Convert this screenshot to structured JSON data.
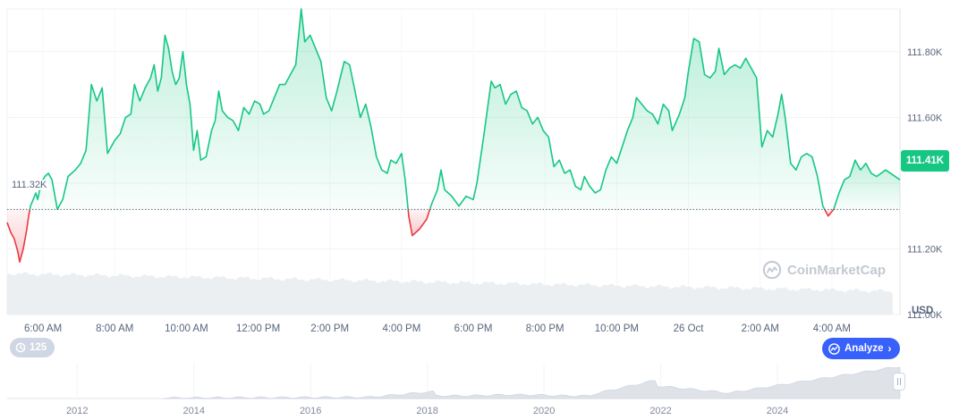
{
  "chart_data": {
    "type": "line",
    "currency_label": "USD",
    "reference_price": 111320,
    "reference_label": "111.32K",
    "current_price_label": "111.41K",
    "y_ticks": [
      {
        "value": 111000,
        "label": "111.00K"
      },
      {
        "value": 111200,
        "label": "111.20K"
      },
      {
        "value": 111400,
        "label": ""
      },
      {
        "value": 111600,
        "label": "111.60K"
      },
      {
        "value": 111800,
        "label": "111.80K"
      }
    ],
    "ylim": [
      111000,
      111930
    ],
    "x_range_hours": [
      5.0,
      29.9
    ],
    "x_ticks": [
      {
        "hour": 6,
        "label": "6:00 AM"
      },
      {
        "hour": 8,
        "label": "8:00 AM"
      },
      {
        "hour": 10,
        "label": "10:00 AM"
      },
      {
        "hour": 12,
        "label": "12:00 PM"
      },
      {
        "hour": 14,
        "label": "2:00 PM"
      },
      {
        "hour": 16,
        "label": "4:00 PM"
      },
      {
        "hour": 18,
        "label": "6:00 PM"
      },
      {
        "hour": 20,
        "label": "8:00 PM"
      },
      {
        "hour": 22,
        "label": "10:00 PM"
      },
      {
        "hour": 24,
        "label": "26 Oct"
      },
      {
        "hour": 26,
        "label": "2:00 AM"
      },
      {
        "hour": 28,
        "label": "4:00 AM"
      }
    ],
    "series": [
      {
        "points": [
          [
            5.0,
            111280
          ],
          [
            5.1,
            111250
          ],
          [
            5.2,
            111230
          ],
          [
            5.3,
            111190
          ],
          [
            5.35,
            111160
          ],
          [
            5.45,
            111200
          ],
          [
            5.55,
            111260
          ],
          [
            5.6,
            111300
          ],
          [
            5.65,
            111330
          ],
          [
            5.8,
            111370
          ],
          [
            5.85,
            111350
          ],
          [
            5.95,
            111400
          ],
          [
            6.05,
            111420
          ],
          [
            6.15,
            111430
          ],
          [
            6.25,
            111410
          ],
          [
            6.4,
            111320
          ],
          [
            6.55,
            111350
          ],
          [
            6.7,
            111420
          ],
          [
            6.9,
            111440
          ],
          [
            7.05,
            111460
          ],
          [
            7.2,
            111500
          ],
          [
            7.35,
            111700
          ],
          [
            7.5,
            111650
          ],
          [
            7.65,
            111690
          ],
          [
            7.8,
            111490
          ],
          [
            8.0,
            111530
          ],
          [
            8.15,
            111550
          ],
          [
            8.3,
            111600
          ],
          [
            8.45,
            111610
          ],
          [
            8.55,
            111700
          ],
          [
            8.7,
            111650
          ],
          [
            8.85,
            111690
          ],
          [
            9.0,
            111720
          ],
          [
            9.1,
            111760
          ],
          [
            9.2,
            111680
          ],
          [
            9.3,
            111720
          ],
          [
            9.4,
            111850
          ],
          [
            9.5,
            111810
          ],
          [
            9.6,
            111740
          ],
          [
            9.7,
            111700
          ],
          [
            9.8,
            111720
          ],
          [
            9.9,
            111800
          ],
          [
            10.0,
            111700
          ],
          [
            10.1,
            111640
          ],
          [
            10.2,
            111500
          ],
          [
            10.3,
            111560
          ],
          [
            10.4,
            111470
          ],
          [
            10.55,
            111480
          ],
          [
            10.7,
            111560
          ],
          [
            10.8,
            111590
          ],
          [
            10.9,
            111680
          ],
          [
            11.0,
            111620
          ],
          [
            11.15,
            111600
          ],
          [
            11.3,
            111590
          ],
          [
            11.45,
            111560
          ],
          [
            11.6,
            111630
          ],
          [
            11.75,
            111610
          ],
          [
            11.9,
            111650
          ],
          [
            12.05,
            111640
          ],
          [
            12.15,
            111610
          ],
          [
            12.3,
            111620
          ],
          [
            12.45,
            111660
          ],
          [
            12.6,
            111700
          ],
          [
            12.75,
            111700
          ],
          [
            12.9,
            111730
          ],
          [
            13.05,
            111760
          ],
          [
            13.2,
            111930
          ],
          [
            13.3,
            111830
          ],
          [
            13.45,
            111850
          ],
          [
            13.6,
            111810
          ],
          [
            13.75,
            111770
          ],
          [
            13.9,
            111660
          ],
          [
            14.05,
            111620
          ],
          [
            14.2,
            111680
          ],
          [
            14.4,
            111770
          ],
          [
            14.55,
            111760
          ],
          [
            14.7,
            111680
          ],
          [
            14.85,
            111600
          ],
          [
            15.0,
            111640
          ],
          [
            15.15,
            111570
          ],
          [
            15.3,
            111480
          ],
          [
            15.45,
            111440
          ],
          [
            15.6,
            111430
          ],
          [
            15.7,
            111470
          ],
          [
            15.85,
            111460
          ],
          [
            16.0,
            111490
          ],
          [
            16.1,
            111410
          ],
          [
            16.2,
            111300
          ],
          [
            16.3,
            111240
          ],
          [
            16.5,
            111260
          ],
          [
            16.7,
            111290
          ],
          [
            16.85,
            111340
          ],
          [
            17.0,
            111380
          ],
          [
            17.1,
            111440
          ],
          [
            17.2,
            111380
          ],
          [
            17.4,
            111360
          ],
          [
            17.6,
            111330
          ],
          [
            17.8,
            111360
          ],
          [
            18.0,
            111350
          ],
          [
            18.1,
            111400
          ],
          [
            18.3,
            111550
          ],
          [
            18.5,
            111710
          ],
          [
            18.6,
            111690
          ],
          [
            18.75,
            111700
          ],
          [
            18.9,
            111640
          ],
          [
            19.05,
            111670
          ],
          [
            19.2,
            111680
          ],
          [
            19.35,
            111630
          ],
          [
            19.5,
            111620
          ],
          [
            19.65,
            111580
          ],
          [
            19.8,
            111600
          ],
          [
            19.95,
            111560
          ],
          [
            20.1,
            111540
          ],
          [
            20.25,
            111450
          ],
          [
            20.4,
            111470
          ],
          [
            20.55,
            111430
          ],
          [
            20.7,
            111440
          ],
          [
            20.85,
            111390
          ],
          [
            21.0,
            111380
          ],
          [
            21.1,
            111420
          ],
          [
            21.25,
            111390
          ],
          [
            21.4,
            111370
          ],
          [
            21.55,
            111380
          ],
          [
            21.7,
            111440
          ],
          [
            21.85,
            111480
          ],
          [
            22.0,
            111460
          ],
          [
            22.15,
            111510
          ],
          [
            22.3,
            111560
          ],
          [
            22.45,
            111600
          ],
          [
            22.55,
            111660
          ],
          [
            22.7,
            111640
          ],
          [
            22.85,
            111620
          ],
          [
            23.0,
            111610
          ],
          [
            23.15,
            111580
          ],
          [
            23.3,
            111640
          ],
          [
            23.45,
            111620
          ],
          [
            23.55,
            111560
          ],
          [
            23.75,
            111610
          ],
          [
            23.9,
            111660
          ],
          [
            24.0,
            111740
          ],
          [
            24.15,
            111840
          ],
          [
            24.3,
            111830
          ],
          [
            24.45,
            111730
          ],
          [
            24.6,
            111720
          ],
          [
            24.75,
            111740
          ],
          [
            24.85,
            111810
          ],
          [
            25.0,
            111730
          ],
          [
            25.15,
            111750
          ],
          [
            25.3,
            111760
          ],
          [
            25.45,
            111750
          ],
          [
            25.6,
            111780
          ],
          [
            25.75,
            111750
          ],
          [
            25.9,
            111720
          ],
          [
            26.05,
            111510
          ],
          [
            26.2,
            111560
          ],
          [
            26.35,
            111540
          ],
          [
            26.5,
            111610
          ],
          [
            26.6,
            111670
          ],
          [
            26.7,
            111600
          ],
          [
            26.85,
            111460
          ],
          [
            27.0,
            111440
          ],
          [
            27.15,
            111480
          ],
          [
            27.3,
            111490
          ],
          [
            27.45,
            111480
          ],
          [
            27.6,
            111420
          ],
          [
            27.75,
            111330
          ],
          [
            27.9,
            111300
          ],
          [
            28.05,
            111320
          ],
          [
            28.2,
            111370
          ],
          [
            28.35,
            111410
          ],
          [
            28.5,
            111420
          ],
          [
            28.65,
            111470
          ],
          [
            28.8,
            111440
          ],
          [
            28.95,
            111460
          ],
          [
            29.1,
            111430
          ],
          [
            29.25,
            111420
          ],
          [
            29.5,
            111440
          ],
          [
            29.9,
            111410
          ]
        ]
      }
    ],
    "overview": {
      "year_ticks": [
        "2012",
        "2014",
        "2016",
        "2018",
        "2020",
        "2022",
        "2024"
      ],
      "year_range": [
        2010.8,
        2026.1
      ]
    }
  },
  "controls": {
    "history_count": "125",
    "analyze_label": "Analyze"
  },
  "watermark": {
    "text": "CoinMarketCap"
  },
  "colors": {
    "up": "#16c784",
    "down": "#ea3943",
    "grid": "#eff2f5"
  }
}
